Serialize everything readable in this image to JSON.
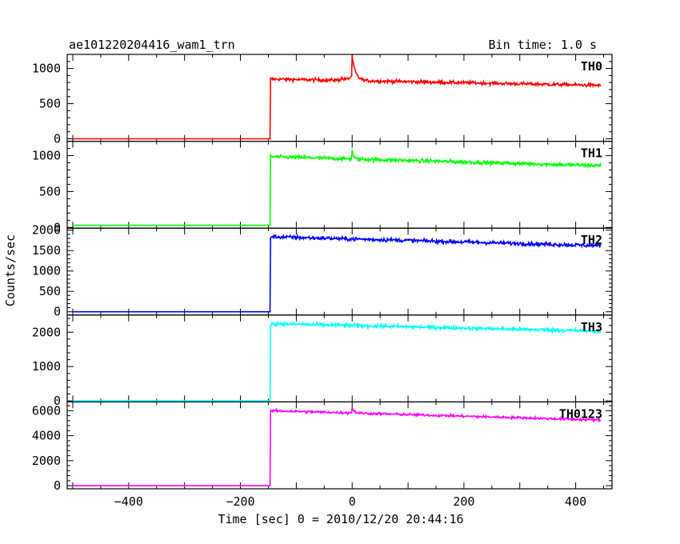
{
  "header": {
    "title": "ae101220204416_wam1_trn",
    "bin_time": "Bin time: 1.0 s"
  },
  "chart_data": {
    "type": "line",
    "xlabel": "Time [sec] 0 = 2010/12/20 20:44:16",
    "ylabel": "Counts/sec",
    "xlim": [
      -510,
      465
    ],
    "x_ticks": [
      -400,
      -200,
      0,
      200,
      400
    ],
    "x_data_range": [
      -500,
      445
    ],
    "onset_x": -146,
    "grid": false,
    "panels": [
      {
        "name": "TH0",
        "color": "#ff0000",
        "ylim": [
          -35,
          1200
        ],
        "y_ticks": [
          0,
          500,
          1000
        ],
        "baseline": 0,
        "level_start": 850,
        "level_end": 760,
        "noise": 22,
        "spikes": [
          {
            "x": 0,
            "value": 1180,
            "decay": 6
          },
          {
            "x": -20,
            "value": 880,
            "decay": 12
          }
        ]
      },
      {
        "name": "TH1",
        "color": "#00ff00",
        "ylim": [
          -10,
          1200
        ],
        "y_ticks": [
          0,
          500,
          1000
        ],
        "baseline": 30,
        "level_start": 985,
        "level_end": 860,
        "noise": 25,
        "spikes": [
          {
            "x": 0,
            "value": 1120,
            "decay": 2
          }
        ]
      },
      {
        "name": "TH2",
        "color": "#0000ff",
        "ylim": [
          -80,
          2050
        ],
        "y_ticks": [
          0,
          500,
          1000,
          1500,
          2000
        ],
        "baseline": 0,
        "level_start": 1840,
        "level_end": 1620,
        "noise": 45,
        "spikes": []
      },
      {
        "name": "TH3",
        "color": "#00ffff",
        "ylim": [
          -30,
          2500
        ],
        "y_ticks": [
          0,
          1000,
          2000
        ],
        "baseline": 0,
        "level_start": 2250,
        "level_end": 2030,
        "noise": 50,
        "spikes": []
      },
      {
        "name": "TH0123",
        "color": "#ff00ff",
        "ylim": [
          -250,
          6700
        ],
        "y_ticks": [
          0,
          2000,
          4000,
          6000
        ],
        "baseline": 0,
        "level_start": 6000,
        "level_end": 5250,
        "noise": 90,
        "spikes": [
          {
            "x": 0,
            "value": 6400,
            "decay": 4
          }
        ]
      }
    ]
  }
}
